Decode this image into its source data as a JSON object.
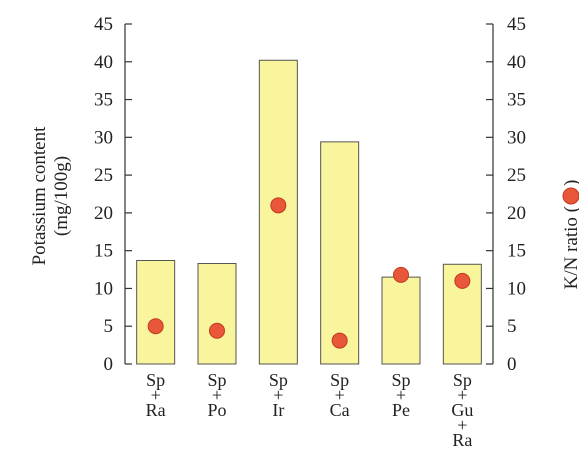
{
  "chart_data": {
    "type": "bar",
    "categories": [
      [
        "Sp",
        "+",
        "Ra"
      ],
      [
        "Sp",
        "+",
        "Po"
      ],
      [
        "Sp",
        "+",
        "Ir"
      ],
      [
        "Sp",
        "+",
        "Ca"
      ],
      [
        "Sp",
        "+",
        "Pe"
      ],
      [
        "Sp",
        "+",
        "Gu",
        "+",
        "Ra"
      ]
    ],
    "series": [
      {
        "name": "Potassium content",
        "kind": "bar",
        "axis": "left",
        "color": "#f9f59c",
        "values": [
          13.7,
          13.3,
          40.2,
          29.4,
          11.5,
          13.2
        ]
      },
      {
        "name": "K/N ratio",
        "kind": "scatter",
        "axis": "right",
        "color": "#e8573a",
        "values": [
          5.0,
          4.4,
          21.0,
          3.1,
          11.8,
          11.0
        ]
      }
    ],
    "ylabel_left": [
      "Potassium content",
      "(mg/100g)"
    ],
    "ylabel_right": [
      "K/N ratio (",
      ")"
    ],
    "ylim": [
      0,
      45
    ],
    "y2lim": [
      0,
      45
    ],
    "yticks": [
      0,
      5,
      10,
      15,
      20,
      25,
      30,
      35,
      40,
      45
    ],
    "bar_edge_color": "#555555",
    "marker_edge_color": "#c23a1e",
    "grid": false,
    "legend": "none"
  }
}
